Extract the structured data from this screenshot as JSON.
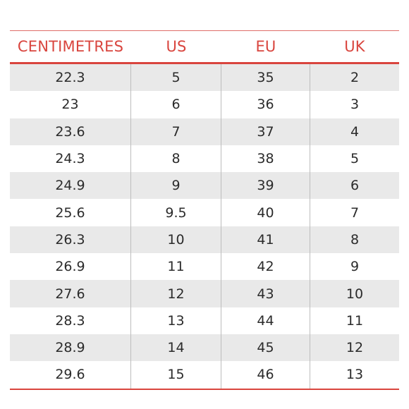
{
  "colors": {
    "accent": "#d9453e",
    "row_shade": "#e9e9e9",
    "text": "#2b2b2b"
  },
  "table": {
    "headers": [
      "CENTIMETRES",
      "US",
      "EU",
      "UK"
    ],
    "rows": [
      [
        "22.3",
        "5",
        "35",
        "2"
      ],
      [
        "23",
        "6",
        "36",
        "3"
      ],
      [
        "23.6",
        "7",
        "37",
        "4"
      ],
      [
        "24.3",
        "8",
        "38",
        "5"
      ],
      [
        "24.9",
        "9",
        "39",
        "6"
      ],
      [
        "25.6",
        "9.5",
        "40",
        "7"
      ],
      [
        "26.3",
        "10",
        "41",
        "8"
      ],
      [
        "26.9",
        "11",
        "42",
        "9"
      ],
      [
        "27.6",
        "12",
        "43",
        "10"
      ],
      [
        "28.3",
        "13",
        "44",
        "11"
      ],
      [
        "28.9",
        "14",
        "45",
        "12"
      ],
      [
        "29.6",
        "15",
        "46",
        "13"
      ]
    ]
  }
}
